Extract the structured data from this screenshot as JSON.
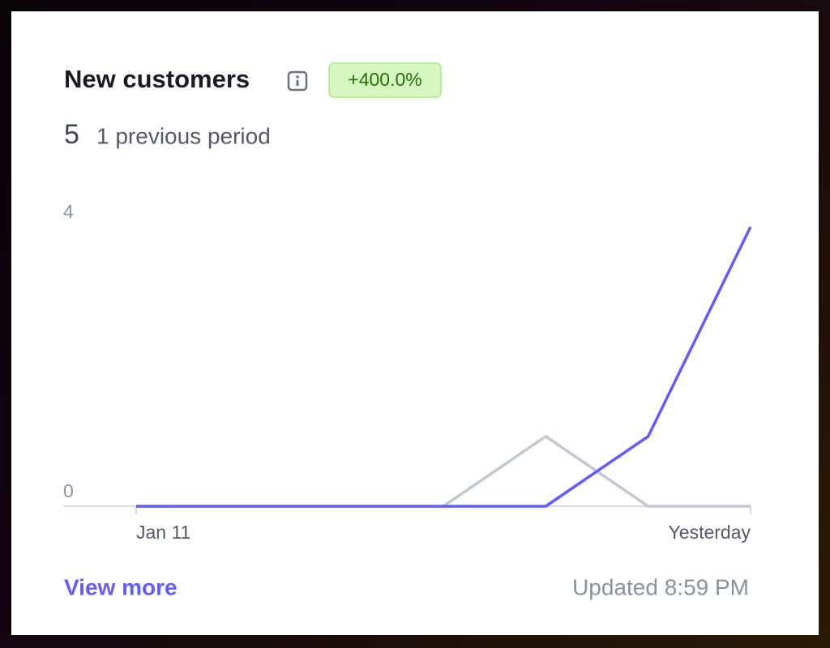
{
  "header": {
    "title": "New customers",
    "badge": "+400.0%",
    "value": "5",
    "comparison": "1 previous period"
  },
  "chart_data": {
    "type": "line",
    "categories": [
      "Jan 11",
      null,
      null,
      null,
      null,
      null,
      "Yesterday"
    ],
    "series": [
      {
        "color": "#c1c9d2",
        "values": [
          0,
          0,
          0,
          0,
          1,
          0,
          0
        ]
      },
      {
        "color": "#635bff",
        "values": [
          0,
          0,
          0,
          0,
          0,
          1,
          4
        ]
      }
    ],
    "ylim": [
      0,
      4
    ],
    "yticks": [
      0,
      4
    ]
  },
  "footer": {
    "link": "View more",
    "updated": "Updated 8:59 PM"
  }
}
